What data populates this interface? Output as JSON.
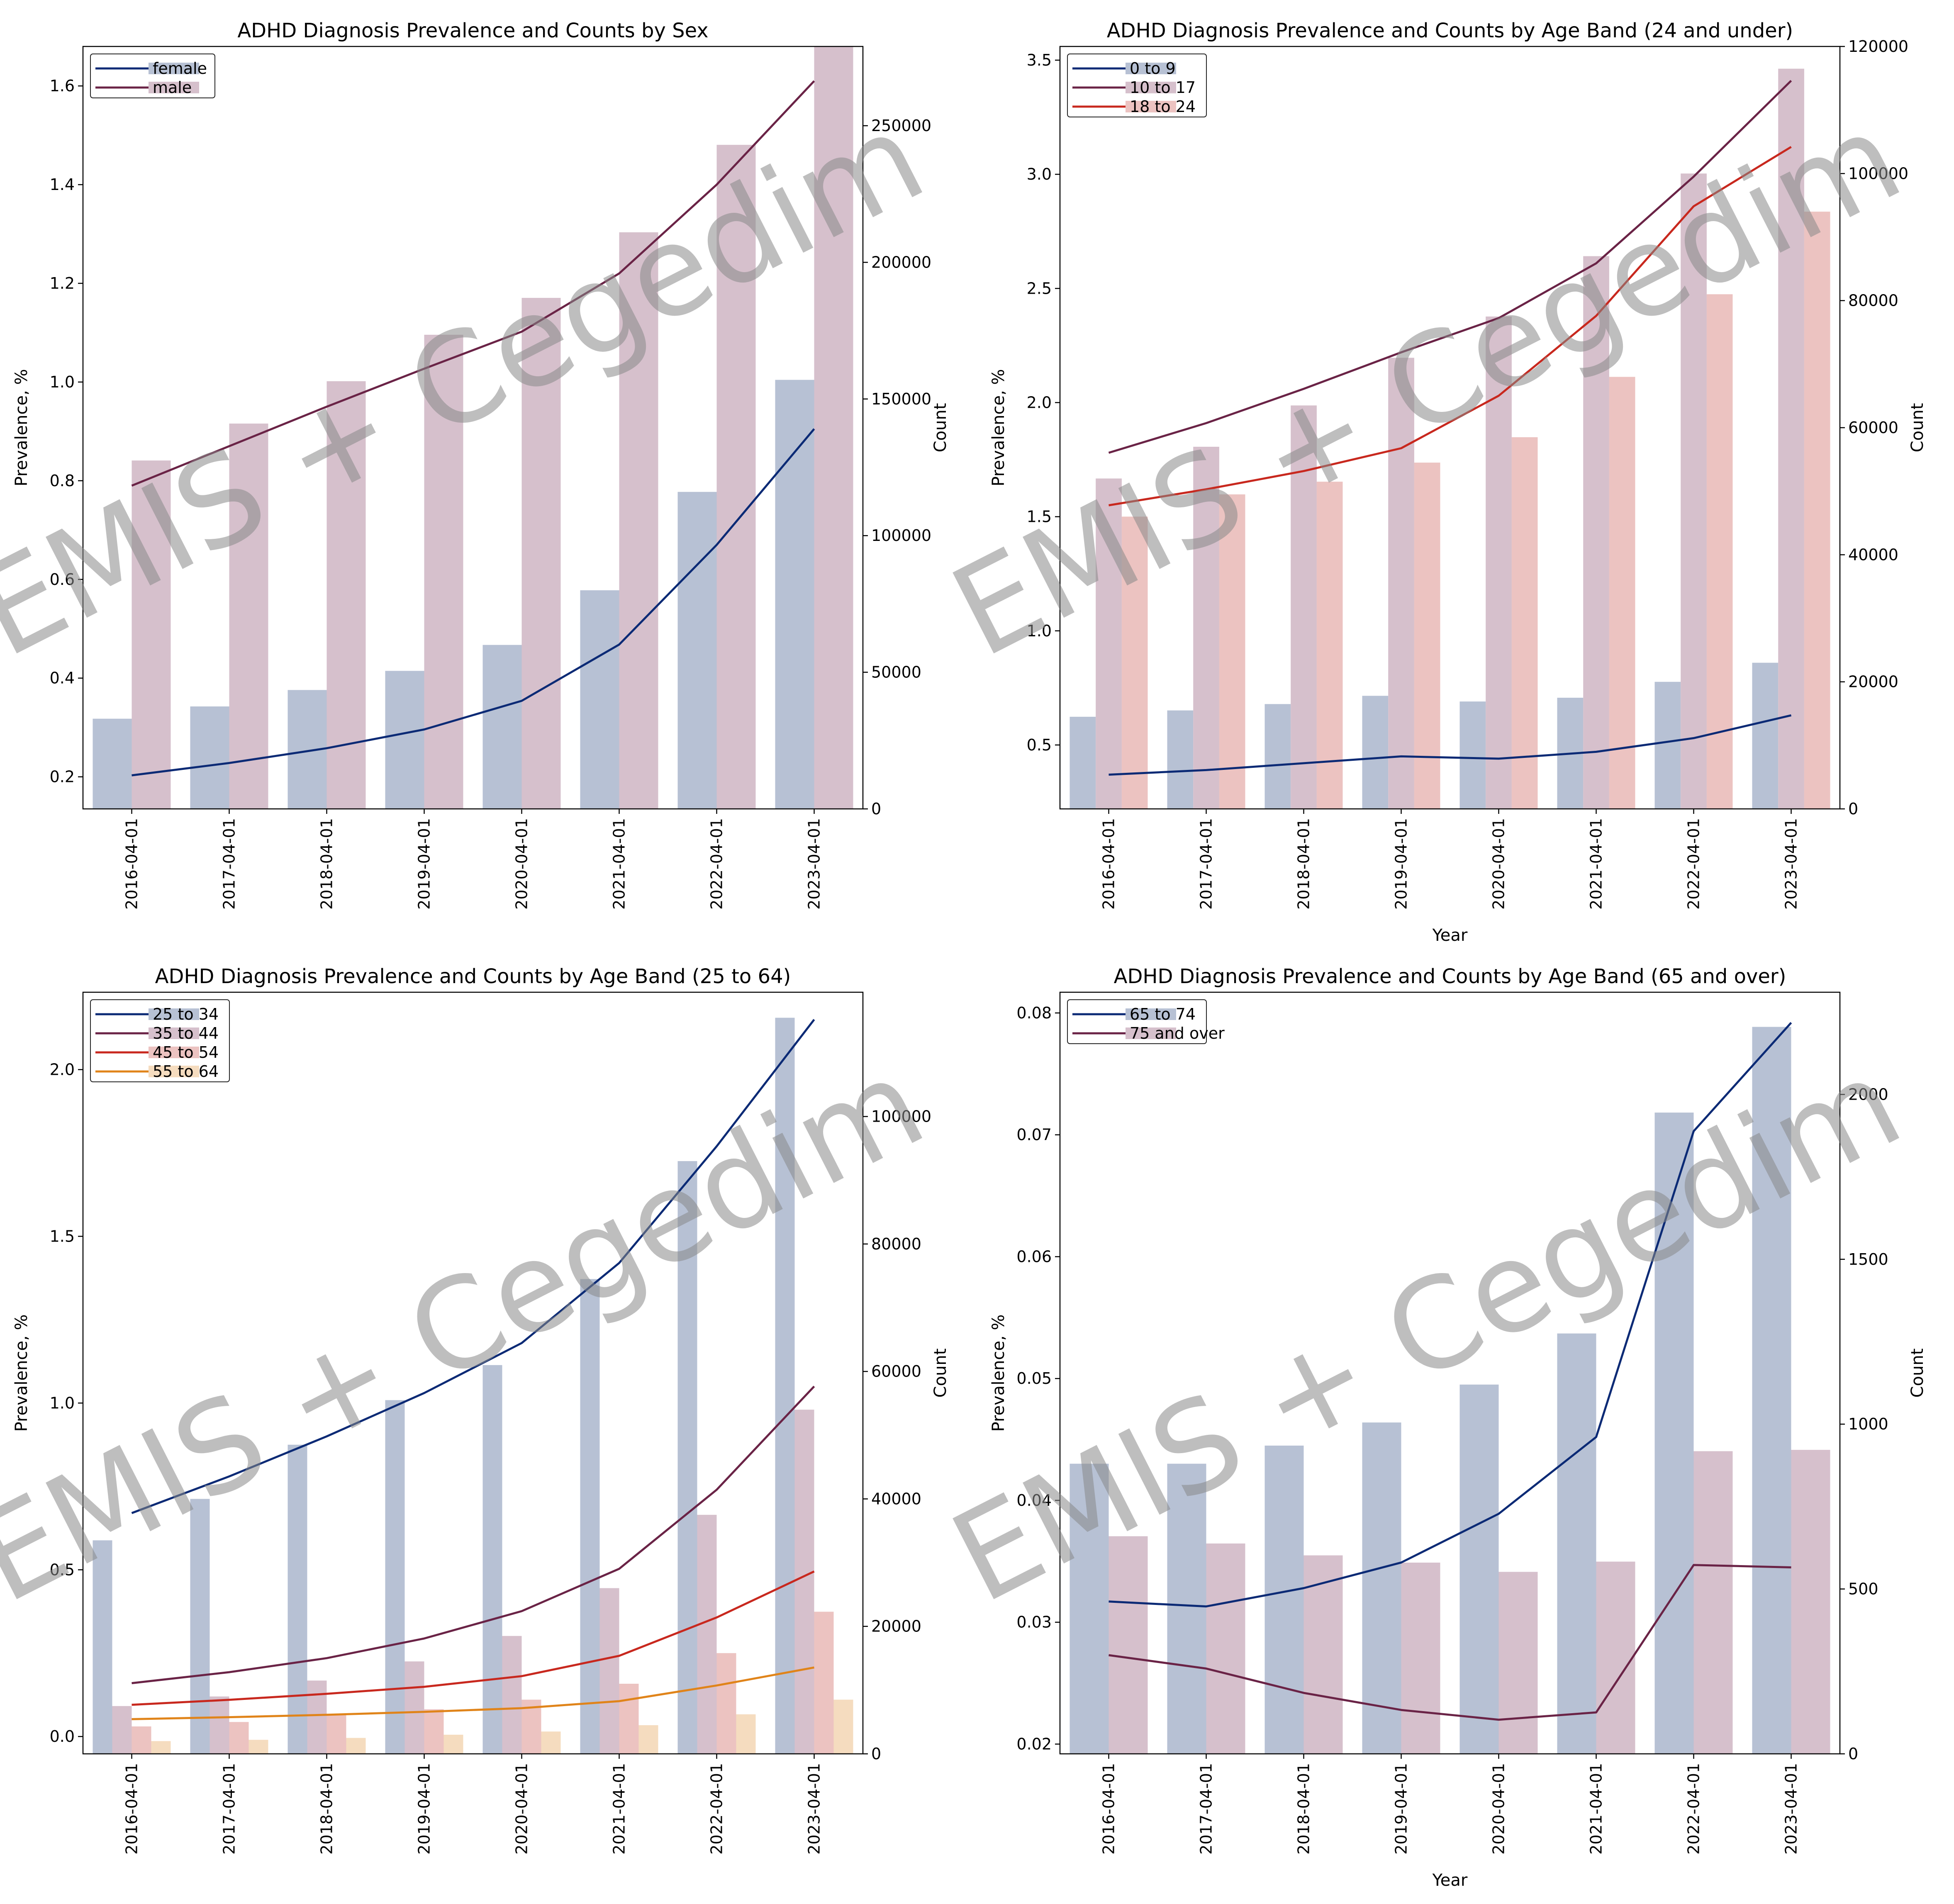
{
  "watermark": "EMIS + Cegedim",
  "colors": {
    "navy": "#0b2a75",
    "plum": "#6a2346",
    "red": "#c8281e",
    "orange": "#e0841a",
    "bar_navy": "#b7c1d4",
    "bar_plum": "#d6c0cc",
    "bar_red": "#ecc3c1",
    "bar_orange": "#f5dcbf"
  },
  "chart_data": [
    {
      "type": "bar+line",
      "title": "ADHD Diagnosis Prevalence and Counts by Sex",
      "xlabel": "",
      "ylabel": "Prevalence, %",
      "y2label": "Count",
      "categories": [
        "2016-04-01",
        "2017-04-01",
        "2018-04-01",
        "2019-04-01",
        "2020-04-01",
        "2021-04-01",
        "2022-04-01",
        "2023-04-01"
      ],
      "ylim": [
        0.135,
        1.68
      ],
      "y2lim": [
        0,
        279000
      ],
      "yticks": [
        "0.2",
        "0.4",
        "0.6",
        "0.8",
        "1.0",
        "1.2",
        "1.4",
        "1.6"
      ],
      "y2ticks": [
        "0",
        "50000",
        "100000",
        "150000",
        "200000",
        "250000"
      ],
      "legend": "top-left",
      "series": [
        {
          "name": "female",
          "prevalence": [
            0.203,
            0.228,
            0.258,
            0.296,
            0.354,
            0.468,
            0.67,
            0.905
          ],
          "counts": [
            33000,
            37500,
            43500,
            50500,
            60000,
            80000,
            116000,
            157000
          ],
          "line_color": "#0b2a75",
          "bar_color": "#b7c1d4"
        },
        {
          "name": "male",
          "prevalence": [
            0.79,
            0.87,
            0.95,
            1.027,
            1.102,
            1.22,
            1.4,
            1.61
          ],
          "counts": [
            127500,
            141000,
            156500,
            173500,
            187000,
            211000,
            243000,
            281000
          ],
          "line_color": "#6a2346",
          "bar_color": "#d6c0cc"
        }
      ]
    },
    {
      "type": "bar+line",
      "title": "ADHD Diagnosis Prevalence and Counts by Age Band (24 and under)",
      "xlabel": "Year",
      "ylabel": "Prevalence, %",
      "y2label": "Count",
      "categories": [
        "2016-04-01",
        "2017-04-01",
        "2018-04-01",
        "2019-04-01",
        "2020-04-01",
        "2021-04-01",
        "2022-04-01",
        "2023-04-01"
      ],
      "ylim": [
        0.22,
        3.56
      ],
      "y2lim": [
        0,
        120000
      ],
      "yticks": [
        "0.5",
        "1.0",
        "1.5",
        "2.0",
        "2.5",
        "3.0",
        "3.5"
      ],
      "y2ticks": [
        "0",
        "20000",
        "40000",
        "60000",
        "80000",
        "100000",
        "120000"
      ],
      "legend": "top-left",
      "series": [
        {
          "name": "0 to 9",
          "prevalence": [
            0.37,
            0.39,
            0.42,
            0.45,
            0.44,
            0.47,
            0.53,
            0.63
          ],
          "counts": [
            14500,
            15500,
            16500,
            17800,
            16900,
            17500,
            20000,
            23000
          ],
          "line_color": "#0b2a75",
          "bar_color": "#b7c1d4"
        },
        {
          "name": "10 to 17",
          "prevalence": [
            1.78,
            1.91,
            2.06,
            2.22,
            2.37,
            2.61,
            2.99,
            3.41
          ],
          "counts": [
            52000,
            57000,
            63500,
            71000,
            77500,
            87000,
            100000,
            116500
          ],
          "line_color": "#6a2346",
          "bar_color": "#d6c0cc"
        },
        {
          "name": "18 to 24",
          "prevalence": [
            1.55,
            1.62,
            1.7,
            1.8,
            2.03,
            2.38,
            2.86,
            3.12
          ],
          "counts": [
            46000,
            49500,
            51500,
            54500,
            58500,
            68000,
            81000,
            94000
          ],
          "line_color": "#c8281e",
          "bar_color": "#ecc3c1"
        }
      ]
    },
    {
      "type": "bar+line",
      "title": "ADHD Diagnosis Prevalence and Counts by Age Band (25 to 64)",
      "xlabel": "",
      "ylabel": "Prevalence, %",
      "y2label": "Count",
      "categories": [
        "2016-04-01",
        "2017-04-01",
        "2018-04-01",
        "2019-04-01",
        "2020-04-01",
        "2021-04-01",
        "2022-04-01",
        "2023-04-01"
      ],
      "ylim": [
        -0.052,
        2.232
      ],
      "y2lim": [
        0,
        119500
      ],
      "yticks": [
        "0.0",
        "0.5",
        "1.0",
        "1.5",
        "2.0"
      ],
      "y2ticks": [
        "0",
        "20000",
        "40000",
        "60000",
        "80000",
        "100000"
      ],
      "legend": "top-left",
      "series": [
        {
          "name": "25 to 34",
          "prevalence": [
            0.67,
            0.78,
            0.9,
            1.03,
            1.18,
            1.42,
            1.77,
            2.15
          ],
          "counts": [
            33500,
            40000,
            48500,
            55500,
            61000,
            74500,
            93000,
            115500
          ],
          "line_color": "#0b2a75",
          "bar_color": "#b7c1d4"
        },
        {
          "name": "35 to 44",
          "prevalence": [
            0.16,
            0.193,
            0.235,
            0.294,
            0.376,
            0.503,
            0.74,
            1.05
          ],
          "counts": [
            7500,
            9000,
            11500,
            14500,
            18500,
            26000,
            37500,
            54000
          ],
          "line_color": "#6a2346",
          "bar_color": "#d6c0cc"
        },
        {
          "name": "45 to 54",
          "prevalence": [
            0.095,
            0.11,
            0.128,
            0.149,
            0.181,
            0.242,
            0.357,
            0.495
          ],
          "counts": [
            4300,
            5000,
            6100,
            7000,
            8500,
            11000,
            15800,
            22300
          ],
          "line_color": "#c8281e",
          "bar_color": "#ecc3c1"
        },
        {
          "name": "55 to 64",
          "prevalence": [
            0.052,
            0.058,
            0.065,
            0.074,
            0.085,
            0.106,
            0.153,
            0.207
          ],
          "counts": [
            2000,
            2200,
            2500,
            3000,
            3500,
            4500,
            6200,
            8500
          ],
          "line_color": "#e0841a",
          "bar_color": "#f5dcbf"
        }
      ]
    },
    {
      "type": "bar+line",
      "title": "ADHD Diagnosis Prevalence and Counts by Age Band (65 and over)",
      "xlabel": "Year",
      "ylabel": "Prevalence, %",
      "y2label": "Count",
      "categories": [
        "2016-04-01",
        "2017-04-01",
        "2018-04-01",
        "2019-04-01",
        "2020-04-01",
        "2021-04-01",
        "2022-04-01",
        "2023-04-01"
      ],
      "ylim": [
        0.0192,
        0.0817
      ],
      "y2lim": [
        0,
        2310
      ],
      "yticks": [
        "0.02",
        "0.03",
        "0.04",
        "0.05",
        "0.06",
        "0.07",
        "0.08"
      ],
      "y2ticks": [
        "0",
        "500",
        "1000",
        "1500",
        "2000"
      ],
      "legend": "top-left",
      "series": [
        {
          "name": "65 to 74",
          "prevalence": [
            0.0317,
            0.0313,
            0.0328,
            0.0349,
            0.0389,
            0.0452,
            0.0703,
            0.0792
          ],
          "counts": [
            880,
            880,
            935,
            1005,
            1120,
            1275,
            1945,
            2205
          ],
          "line_color": "#0b2a75",
          "bar_color": "#b7c1d4"
        },
        {
          "name": "75 and over",
          "prevalence": [
            0.0273,
            0.0262,
            0.0242,
            0.0228,
            0.022,
            0.0226,
            0.0347,
            0.0345
          ],
          "counts": [
            660,
            638,
            602,
            580,
            552,
            583,
            918,
            922
          ],
          "line_color": "#6a2346",
          "bar_color": "#d6c0cc"
        }
      ]
    }
  ]
}
